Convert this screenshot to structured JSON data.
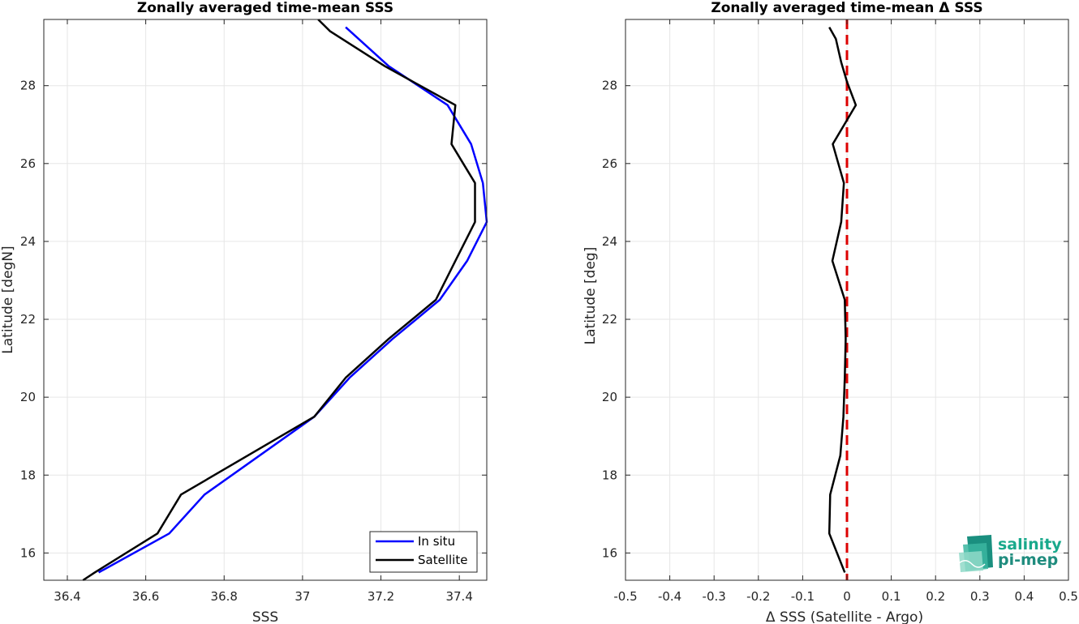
{
  "colors": {
    "insitu": "#0000ff",
    "satellite": "#000000",
    "zero_line": "#dd0000",
    "logo_salinity": "#19a98c",
    "logo_pimep": "#1f8c7e"
  },
  "logo": {
    "line1": "salinity",
    "line2": "pi-mep",
    "icon": "wave-layers-icon"
  },
  "chart_data": [
    {
      "type": "line",
      "title": "Zonally averaged time-mean SSS",
      "xlabel": "SSS",
      "ylabel": "Latitude [degN]",
      "xlim": [
        36.34,
        37.47
      ],
      "ylim": [
        15.3,
        29.7
      ],
      "xticks": [
        36.4,
        36.6,
        36.8,
        37,
        37.2,
        37.4
      ],
      "xtick_labels": [
        "36.4",
        "36.6",
        "36.8",
        "37",
        "37.2",
        "37.4"
      ],
      "yticks": [
        16,
        18,
        20,
        22,
        24,
        26,
        28
      ],
      "ytick_labels": [
        "16",
        "18",
        "20",
        "22",
        "24",
        "26",
        "28"
      ],
      "grid": true,
      "legend_position": "bottom-right",
      "series": [
        {
          "name": "In situ",
          "color": "insitu",
          "points": [
            [
              36.48,
              15.5
            ],
            [
              36.66,
              16.5
            ],
            [
              36.75,
              17.5
            ],
            [
              37.03,
              19.5
            ],
            [
              37.12,
              20.5
            ],
            [
              37.23,
              21.5
            ],
            [
              37.35,
              22.5
            ],
            [
              37.42,
              23.5
            ],
            [
              37.47,
              24.5
            ],
            [
              37.46,
              25.5
            ],
            [
              37.43,
              26.5
            ],
            [
              37.37,
              27.5
            ],
            [
              37.22,
              28.5
            ],
            [
              37.11,
              29.5
            ]
          ]
        },
        {
          "name": "Satellite",
          "color": "satellite",
          "points": [
            [
              36.44,
              15.3
            ],
            [
              36.47,
              15.5
            ],
            [
              36.63,
              16.5
            ],
            [
              36.69,
              17.5
            ],
            [
              37.03,
              19.5
            ],
            [
              37.11,
              20.5
            ],
            [
              37.22,
              21.5
            ],
            [
              37.34,
              22.5
            ],
            [
              37.39,
              23.5
            ],
            [
              37.44,
              24.5
            ],
            [
              37.44,
              25.5
            ],
            [
              37.38,
              26.5
            ],
            [
              37.39,
              27.5
            ],
            [
              37.21,
              28.5
            ],
            [
              37.07,
              29.4
            ],
            [
              37.04,
              29.7
            ]
          ]
        }
      ]
    },
    {
      "type": "line",
      "title": "Zonally averaged time-mean Δ SSS",
      "xlabel": "Δ SSS (Satellite - Argo)",
      "ylabel": "Latitude [deg]",
      "xlim": [
        -0.5,
        0.5
      ],
      "ylim": [
        15.3,
        29.7
      ],
      "xticks": [
        -0.5,
        -0.4,
        -0.3,
        -0.2,
        -0.1,
        0,
        0.1,
        0.2,
        0.3,
        0.4,
        0.5
      ],
      "xtick_labels": [
        "-0.5",
        "-0.4",
        "-0.3",
        "-0.2",
        "-0.1",
        "0",
        "0.1",
        "0.2",
        "0.3",
        "0.4",
        "0.5"
      ],
      "yticks": [
        16,
        18,
        20,
        22,
        24,
        26,
        28
      ],
      "ytick_labels": [
        "16",
        "18",
        "20",
        "22",
        "24",
        "26",
        "28"
      ],
      "grid": true,
      "reference_line": {
        "x": 0,
        "style": "dashed",
        "color": "zero_line"
      },
      "series": [
        {
          "color": "satellite",
          "points": [
            [
              -0.005,
              15.5
            ],
            [
              -0.04,
              16.5
            ],
            [
              -0.038,
              17.5
            ],
            [
              -0.015,
              18.5
            ],
            [
              -0.008,
              19.5
            ],
            [
              -0.005,
              20.5
            ],
            [
              -0.003,
              21.5
            ],
            [
              -0.005,
              22.5
            ],
            [
              -0.033,
              23.5
            ],
            [
              -0.013,
              24.5
            ],
            [
              -0.007,
              25.5
            ],
            [
              -0.032,
              26.5
            ],
            [
              0.02,
              27.5
            ],
            [
              0.0,
              28.1
            ],
            [
              -0.013,
              28.6
            ],
            [
              -0.025,
              29.2
            ],
            [
              -0.04,
              29.5
            ]
          ]
        }
      ]
    }
  ]
}
